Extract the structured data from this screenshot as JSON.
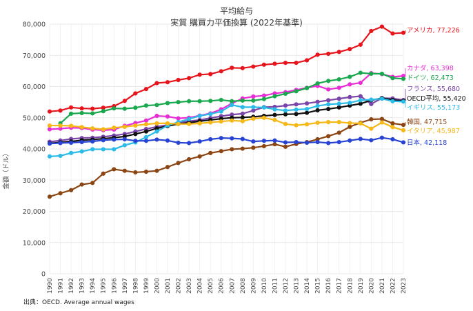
{
  "chart_data": {
    "type": "line",
    "title": "平均給与",
    "subtitle": "実質 購買力平価換算 (2022年基準)",
    "ylabel": "金額（ドル）",
    "xlabel": "",
    "ylim": [
      0,
      80000
    ],
    "yticks": [
      0,
      10000,
      20000,
      30000,
      40000,
      50000,
      60000,
      70000,
      80000
    ],
    "ytick_labels": [
      "0",
      "10,000",
      "20,000",
      "30,000",
      "40,000",
      "50,000",
      "60,000",
      "70,000",
      "80,000"
    ],
    "grid": true,
    "source": "出典：OECD. Average annual wages",
    "x": [
      "1990",
      "1991",
      "1992",
      "1993",
      "1994",
      "1995",
      "1996",
      "1997",
      "1998",
      "1999",
      "2000",
      "2001",
      "2002",
      "2003",
      "2004",
      "2005",
      "2006",
      "2007",
      "2008",
      "2009",
      "2010",
      "2011",
      "2012",
      "2013",
      "2014",
      "2015",
      "2016",
      "2017",
      "2018",
      "2019",
      "2020",
      "2021",
      "2022",
      "2023"
    ],
    "series": [
      {
        "name": "アメリカ",
        "label": "アメリカ, 77,226",
        "color": "#e8141c",
        "values": [
          52000,
          52300,
          53300,
          53000,
          52900,
          53200,
          53700,
          55400,
          57800,
          59200,
          61100,
          61400,
          62100,
          62700,
          63800,
          64000,
          64900,
          66000,
          65900,
          66400,
          67000,
          67300,
          67600,
          67600,
          68400,
          70200,
          70500,
          71100,
          72000,
          73400,
          77800,
          79200,
          77000,
          77226
        ]
      },
      {
        "name": "カナダ",
        "label": "カナダ, 63,398",
        "color": "#e72ed6",
        "values": [
          46300,
          46500,
          46800,
          46700,
          46200,
          46000,
          46200,
          47400,
          48300,
          49100,
          50600,
          50400,
          49800,
          50000,
          50700,
          51400,
          52700,
          54600,
          56200,
          56800,
          57100,
          57800,
          58200,
          58900,
          59600,
          60200,
          59100,
          59600,
          60700,
          61200,
          64300,
          64000,
          63100,
          63398
        ]
      },
      {
        "name": "ドイツ",
        "label": "ドイツ, 62,473",
        "color": "#1aa84e",
        "values": [
          null,
          48200,
          51300,
          51500,
          51400,
          52100,
          53000,
          52900,
          53200,
          53900,
          54100,
          54700,
          55000,
          55300,
          55300,
          55400,
          55700,
          55300,
          55500,
          55500,
          56000,
          56900,
          57700,
          58500,
          59500,
          61000,
          61800,
          62300,
          63100,
          64400,
          64100,
          64100,
          62700,
          62473
        ]
      },
      {
        "name": "フランス",
        "label": "フランス, 55,680",
        "color": "#7a45a8",
        "values": [
          42300,
          42700,
          43200,
          43500,
          43600,
          43900,
          44300,
          44800,
          45600,
          46400,
          47100,
          47700,
          48400,
          48900,
          49300,
          49900,
          50500,
          51000,
          51300,
          52300,
          53400,
          53500,
          53900,
          54300,
          54600,
          55100,
          55600,
          56100,
          56600,
          56900,
          54400,
          56300,
          56200,
          55680
        ]
      },
      {
        "name": "OECD平均",
        "label": "OECD平均, 55,420",
        "color": "#111111",
        "values": [
          41800,
          42100,
          42400,
          42800,
          43000,
          43300,
          43600,
          44000,
          44800,
          45600,
          46600,
          47300,
          48000,
          48400,
          48900,
          49300,
          49700,
          50000,
          50100,
          50300,
          50600,
          50900,
          51100,
          51200,
          51600,
          52400,
          52800,
          53300,
          53900,
          54500,
          55600,
          56300,
          55700,
          55420
        ]
      },
      {
        "name": "イギリス",
        "label": "イギリス, 55,173",
        "color": "#2bbbe8",
        "values": [
          37600,
          37800,
          38700,
          39200,
          39900,
          39900,
          39900,
          41200,
          42100,
          43800,
          45600,
          47500,
          48600,
          49600,
          50600,
          51200,
          52000,
          54100,
          53400,
          53400,
          53300,
          52700,
          52300,
          52600,
          52800,
          53800,
          54300,
          54500,
          54800,
          55600,
          55800,
          56100,
          55300,
          55173
        ]
      },
      {
        "name": "韓国",
        "label": "韓国, 47,715",
        "color": "#8b4513",
        "values": [
          24700,
          25800,
          26800,
          28600,
          29100,
          32100,
          33500,
          33000,
          32500,
          32700,
          33000,
          34200,
          35500,
          36700,
          37600,
          38700,
          39300,
          39900,
          40100,
          40400,
          40900,
          41500,
          40700,
          41600,
          42200,
          43100,
          44100,
          45200,
          47100,
          48400,
          49500,
          49600,
          48200,
          47715
        ]
      },
      {
        "name": "イタリア",
        "label": "イタリア, 45,987",
        "color": "#f5b817",
        "values": [
          47500,
          47500,
          47400,
          47000,
          46600,
          46300,
          46800,
          47100,
          47500,
          47900,
          48200,
          48200,
          48000,
          48000,
          48200,
          48500,
          48800,
          49100,
          48900,
          49700,
          50000,
          49300,
          48000,
          47600,
          47900,
          48400,
          48600,
          48600,
          48300,
          48200,
          46500,
          48500,
          47000,
          45987
        ]
      },
      {
        "name": "日本",
        "label": "日本, 42,118",
        "color": "#2743d3",
        "values": [
          41700,
          41900,
          42000,
          42200,
          42400,
          42800,
          43000,
          43100,
          42600,
          42600,
          43000,
          42700,
          42000,
          41900,
          42400,
          43100,
          43500,
          43400,
          43200,
          42400,
          42600,
          42700,
          42100,
          42200,
          42000,
          42200,
          41900,
          42200,
          42700,
          43200,
          42800,
          43600,
          43100,
          42118
        ]
      }
    ]
  }
}
